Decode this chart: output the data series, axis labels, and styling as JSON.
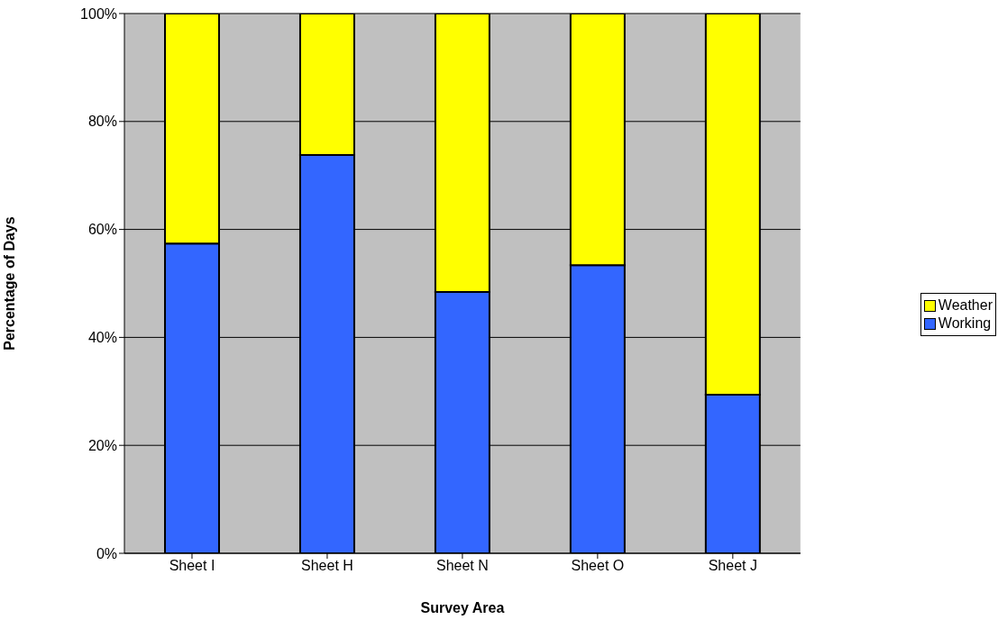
{
  "chart_data": {
    "type": "bar",
    "stacked": true,
    "xlabel": "Survey Area",
    "ylabel": "Percentage of Days",
    "categories": [
      "Sheet I",
      "Sheet H",
      "Sheet N",
      "Sheet O",
      "Sheet J"
    ],
    "series": [
      {
        "name": "Working",
        "color": "#3366ff",
        "values": [
          57.4,
          73.8,
          48.4,
          53.4,
          29.4
        ]
      },
      {
        "name": "Weather",
        "color": "#ffff00",
        "values": [
          42.6,
          26.2,
          51.6,
          46.6,
          70.6
        ]
      }
    ],
    "ylim": [
      0,
      100
    ],
    "yticks": [
      {
        "value": 0,
        "label": "0%"
      },
      {
        "value": 20,
        "label": "20%"
      },
      {
        "value": 40,
        "label": "40%"
      },
      {
        "value": 60,
        "label": "60%"
      },
      {
        "value": 80,
        "label": "80%"
      },
      {
        "value": 100,
        "label": "100%"
      }
    ],
    "grid": "y",
    "legend": "right"
  }
}
